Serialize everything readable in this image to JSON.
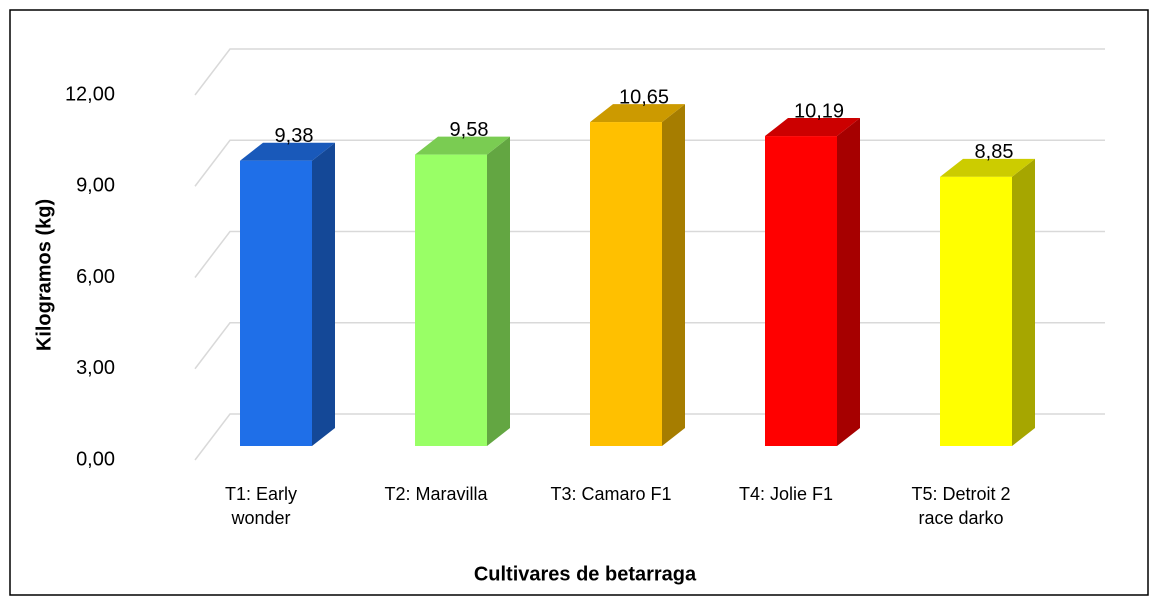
{
  "chart_data": {
    "type": "bar3d",
    "xlabel": "Cultivares de betarraga",
    "ylabel": "Kilogramos (kg)",
    "categories": [
      "T1: Early wonder",
      "T2: Maravilla",
      "T3: Camaro F1",
      "T4: Jolie F1",
      "T5: Detroit 2 race darko"
    ],
    "values": [
      9.38,
      9.58,
      10.65,
      10.19,
      8.85
    ],
    "value_labels": [
      "9,38",
      "9,58",
      "10,65",
      "10,19",
      "8,85"
    ],
    "colors": [
      "#1f6fe8",
      "#99ff66",
      "#ffc000",
      "#ff0000",
      "#ffff00"
    ],
    "ylim": [
      0,
      12
    ],
    "yticks": [
      {
        "value": 0,
        "label": "0,00"
      },
      {
        "value": 3,
        "label": "3,00"
      },
      {
        "value": 6,
        "label": "6,00"
      },
      {
        "value": 9,
        "label": "9,00"
      },
      {
        "value": 12,
        "label": "12,00"
      }
    ],
    "grid": true
  }
}
